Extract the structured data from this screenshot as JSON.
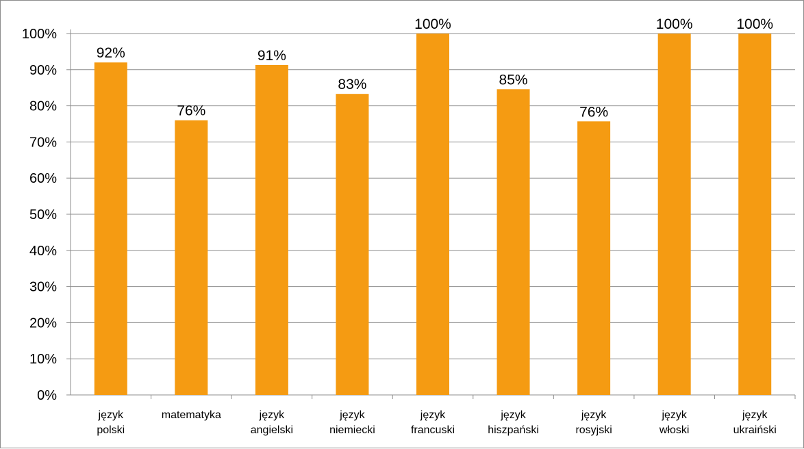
{
  "chart_data": {
    "type": "bar",
    "title": "",
    "xlabel": "",
    "ylabel": "",
    "ylim": [
      0,
      100
    ],
    "y_ticks": [
      0,
      10,
      20,
      30,
      40,
      50,
      60,
      70,
      80,
      90,
      100
    ],
    "y_tick_suffix": "%",
    "grid": true,
    "legend": "none",
    "bar_color": "#F59B12",
    "grid_color": "#8c8c8c",
    "categories": [
      [
        "język",
        "polski"
      ],
      [
        "matematyka"
      ],
      [
        "język",
        "angielski"
      ],
      [
        "język",
        "niemiecki"
      ],
      [
        "język",
        "francuski"
      ],
      [
        "język",
        "hiszpański"
      ],
      [
        "język",
        "rosyjski"
      ],
      [
        "język",
        "włoski"
      ],
      [
        "język",
        "ukraiński"
      ]
    ],
    "values": [
      92,
      76,
      91.3,
      83.3,
      100,
      84.6,
      75.7,
      100,
      100
    ],
    "data_labels": [
      "92%",
      "76%",
      "91%",
      "83%",
      "100%",
      "85%",
      "76%",
      "100%",
      "100%"
    ]
  }
}
